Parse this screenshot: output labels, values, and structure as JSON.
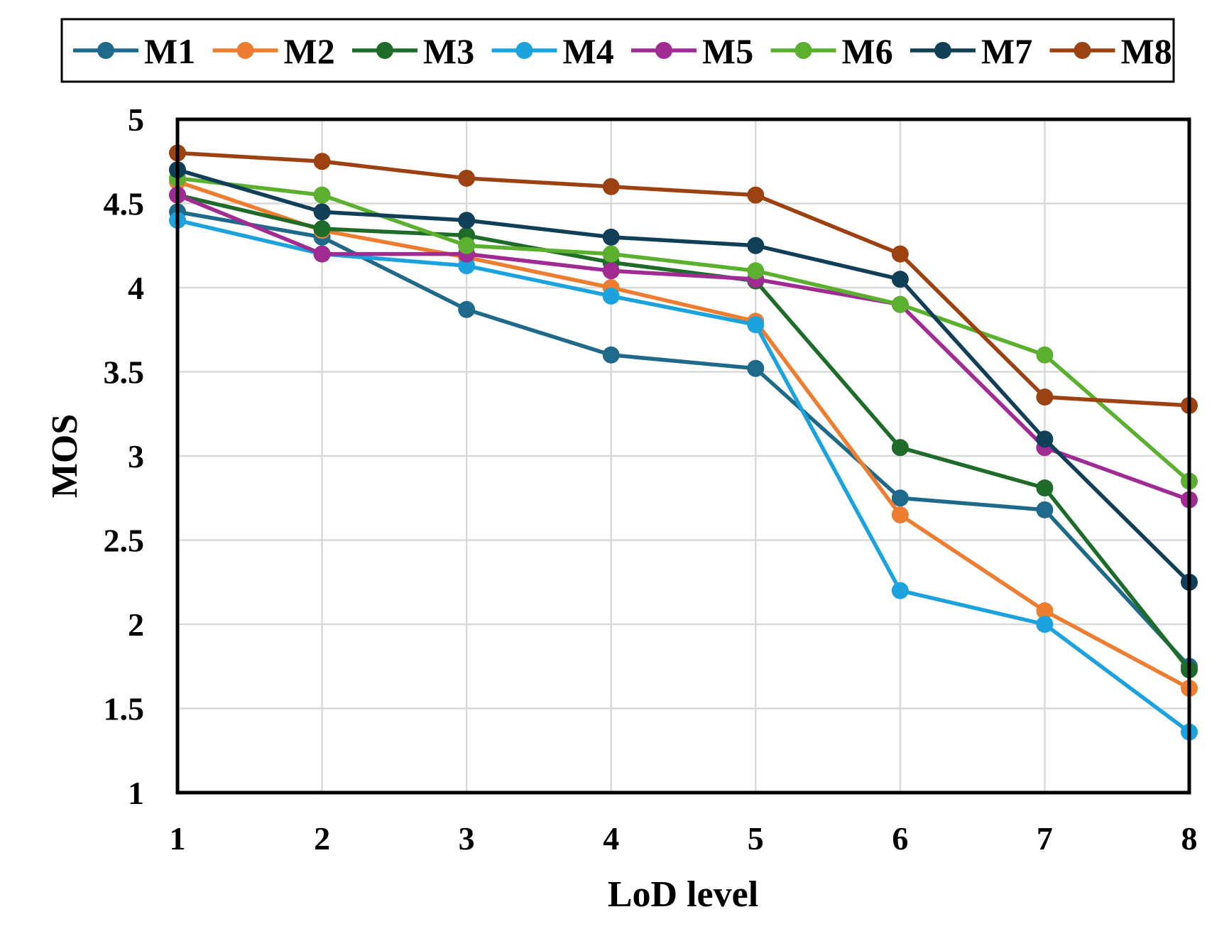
{
  "chart_data": {
    "type": "line",
    "title": "",
    "xlabel": "LoD level",
    "ylabel": "MOS",
    "x": [
      1,
      2,
      3,
      4,
      5,
      6,
      7,
      8
    ],
    "xlim": [
      1,
      8
    ],
    "ylim": [
      1,
      5
    ],
    "yticks": [
      1,
      1.5,
      2,
      2.5,
      3,
      3.5,
      4,
      4.5,
      5
    ],
    "ytick_labels": [
      "1",
      "1.5",
      "2",
      "2.5",
      "3",
      "3.5",
      "4",
      "4.5",
      "5"
    ],
    "xtick_labels": [
      "1",
      "2",
      "3",
      "4",
      "5",
      "6",
      "7",
      "8"
    ],
    "grid": true,
    "legend_position": "top",
    "series": [
      {
        "name": "M1",
        "color": "#1F6A8A",
        "values": [
          4.45,
          4.3,
          3.87,
          3.6,
          3.52,
          2.75,
          2.68,
          1.75
        ]
      },
      {
        "name": "M2",
        "color": "#ED7D31",
        "values": [
          4.63,
          4.34,
          4.18,
          4.0,
          3.8,
          2.65,
          2.08,
          1.62
        ]
      },
      {
        "name": "M3",
        "color": "#1E6B2A",
        "values": [
          4.55,
          4.35,
          4.31,
          4.15,
          4.04,
          3.05,
          2.81,
          1.73
        ]
      },
      {
        "name": "M4",
        "color": "#1CA2DC",
        "values": [
          4.4,
          4.2,
          4.13,
          3.95,
          3.78,
          2.2,
          2.0,
          1.36
        ]
      },
      {
        "name": "M5",
        "color": "#A02B93",
        "values": [
          4.55,
          4.2,
          4.2,
          4.1,
          4.05,
          3.9,
          3.05,
          2.74
        ]
      },
      {
        "name": "M6",
        "color": "#5BB030",
        "values": [
          4.65,
          4.55,
          4.25,
          4.2,
          4.1,
          3.9,
          3.6,
          2.85
        ]
      },
      {
        "name": "M7",
        "color": "#113F57",
        "values": [
          4.7,
          4.45,
          4.4,
          4.3,
          4.25,
          4.05,
          3.1,
          2.25
        ]
      },
      {
        "name": "M8",
        "color": "#9C4212",
        "values": [
          4.8,
          4.75,
          4.65,
          4.6,
          4.55,
          4.2,
          3.35,
          3.3
        ]
      }
    ]
  }
}
